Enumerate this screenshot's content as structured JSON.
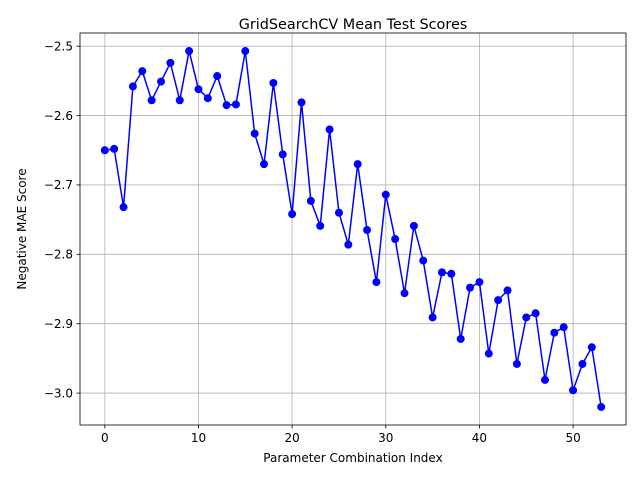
{
  "chart_data": {
    "type": "line",
    "title": "GridSearchCV Mean Test Scores",
    "xlabel": "Parameter Combination Index",
    "ylabel": "Negative MAE Score",
    "xlim": [
      -2.65,
      55.65
    ],
    "ylim": [
      -3.046,
      -2.481
    ],
    "xticks": [
      0,
      10,
      20,
      30,
      40,
      50
    ],
    "xtick_labels": [
      "0",
      "10",
      "20",
      "30",
      "40",
      "50"
    ],
    "yticks": [
      -2.5,
      -2.6,
      -2.7,
      -2.8,
      -2.9,
      -3.0
    ],
    "ytick_labels": [
      "−2.5",
      "−2.6",
      "−2.7",
      "−2.8",
      "−2.9",
      "−3.0"
    ],
    "grid": true,
    "series": [
      {
        "color": "#0000ff",
        "marker": "circle",
        "x": [
          0,
          1,
          2,
          3,
          4,
          5,
          6,
          7,
          8,
          9,
          10,
          11,
          12,
          13,
          14,
          15,
          16,
          17,
          18,
          19,
          20,
          21,
          22,
          23,
          24,
          25,
          26,
          27,
          28,
          29,
          30,
          31,
          32,
          33,
          34,
          35,
          36,
          37,
          38,
          39,
          40,
          41,
          42,
          43,
          44,
          45,
          46,
          47,
          48,
          49,
          50,
          51,
          52,
          53
        ],
        "y": [
          -2.65,
          -2.648,
          -2.732,
          -2.558,
          -2.536,
          -2.578,
          -2.551,
          -2.524,
          -2.578,
          -2.507,
          -2.562,
          -2.575,
          -2.543,
          -2.585,
          -2.584,
          -2.507,
          -2.626,
          -2.67,
          -2.553,
          -2.656,
          -2.742,
          -2.581,
          -2.723,
          -2.759,
          -2.62,
          -2.74,
          -2.786,
          -2.67,
          -2.765,
          -2.84,
          -2.714,
          -2.778,
          -2.856,
          -2.759,
          -2.809,
          -2.891,
          -2.826,
          -2.828,
          -2.922,
          -2.848,
          -2.84,
          -2.943,
          -2.866,
          -2.852,
          -2.958,
          -2.891,
          -2.885,
          -2.981,
          -2.913,
          -2.905,
          -2.996,
          -2.958,
          -2.934,
          -3.02
        ]
      }
    ]
  }
}
